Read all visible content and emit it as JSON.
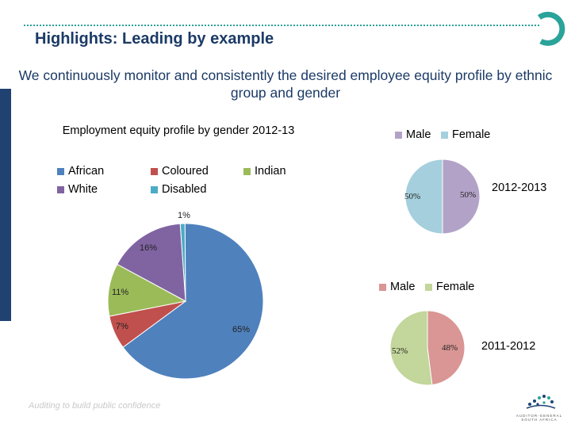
{
  "header": {
    "title": "Highlights: Leading by example",
    "subtitle": "We continuously monitor and consistently the desired employee equity profile by ethnic group and gender"
  },
  "chart_data": [
    {
      "type": "pie",
      "title": "Employment equity profile by gender 2012-13",
      "legend": [
        "African",
        "Coloured",
        "Indian",
        "White",
        "Disabled"
      ],
      "slices": [
        {
          "name": "African",
          "value": 65,
          "label": "65%",
          "color": "#4f81bd"
        },
        {
          "name": "Coloured",
          "value": 7,
          "label": "7%",
          "color": "#c0504d"
        },
        {
          "name": "Indian",
          "value": 11,
          "label": "11%",
          "color": "#9bbb59"
        },
        {
          "name": "White",
          "value": 16,
          "label": "16%",
          "color": "#8064a2"
        },
        {
          "name": "Disabled",
          "value": 1,
          "label": "1%",
          "color": "#4bacc6"
        }
      ]
    },
    {
      "type": "pie",
      "title": "2012-2013",
      "legend": [
        "Male",
        "Female"
      ],
      "slices": [
        {
          "name": "Male",
          "value": 50,
          "label": "50%",
          "color": "#b3a2c7"
        },
        {
          "name": "Female",
          "value": 50,
          "label": "50%",
          "color": "#a5cfdd"
        }
      ]
    },
    {
      "type": "pie",
      "title": "2011-2012",
      "legend": [
        "Male",
        "Female"
      ],
      "slices": [
        {
          "name": "Male",
          "value": 48,
          "label": "48%",
          "color": "#d99694"
        },
        {
          "name": "Female",
          "value": 52,
          "label": "52%",
          "color": "#c3d69b"
        }
      ]
    }
  ],
  "footer": {
    "tagline": "Auditing to build public confidence",
    "logo_text": "AUDITOR-GENERAL SOUTH AFRICA"
  },
  "colors": {
    "title": "#1b3a66",
    "accent": "#2aa39a",
    "sidebar": "#1f4272"
  }
}
